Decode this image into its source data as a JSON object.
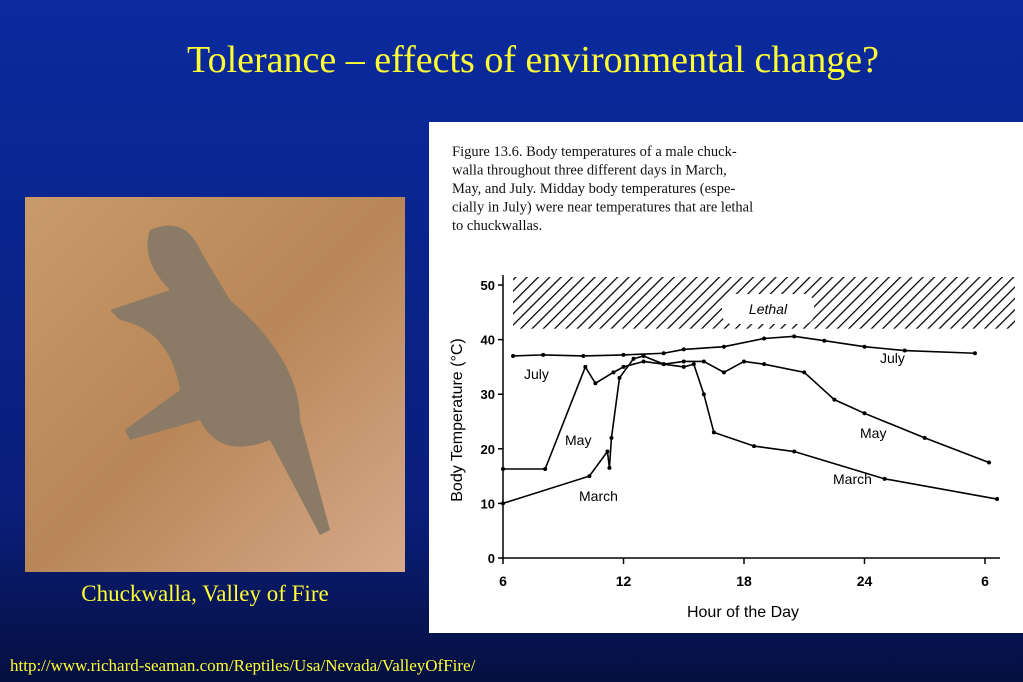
{
  "title": "Tolerance – effects of environmental change?",
  "photo_caption": "Chuckwalla, Valley of Fire",
  "url": "http://www.richard-seaman.com/Reptiles/Usa/Nevada/ValleyOfFire/",
  "figure_caption": [
    "Figure 13.6. Body temperatures of a male chuck-",
    "walla throughout three different days in March,",
    "May, and July. Midday body temperatures (espe-",
    "cially in July) were near temperatures that are lethal",
    "to chuckwallas."
  ],
  "chart_data": {
    "type": "line",
    "xlabel": "Hour of the Day",
    "ylabel": "Body Temperature (°C)",
    "annotation": "Lethal",
    "xlim": [
      6,
      30.8
    ],
    "xticks": [
      6,
      12,
      18,
      24,
      {
        "value": 30,
        "label": "6"
      }
    ],
    "ylim": [
      0,
      50
    ],
    "yticks": [
      0,
      10,
      20,
      30,
      40,
      50
    ],
    "lethal_range": [
      42,
      50
    ],
    "series": [
      {
        "name": "July",
        "color": "#000000",
        "x": [
          6.5,
          8,
          10,
          12,
          14,
          15,
          17,
          19,
          20.5,
          22,
          24,
          26,
          29.5
        ],
        "values": [
          37,
          37.2,
          37,
          37.2,
          37.5,
          38.2,
          38.7,
          40.2,
          40.6,
          39.8,
          38.7,
          38,
          37.5
        ]
      },
      {
        "name": "May",
        "color": "#000000",
        "x": [
          6,
          8.1,
          10.1,
          10.6,
          11.5,
          12,
          13,
          14,
          15,
          16,
          17,
          18,
          19,
          21,
          22.5,
          24,
          27,
          30.2
        ],
        "values": [
          16.3,
          16.3,
          35,
          32,
          34,
          35,
          36,
          35.5,
          36,
          36,
          34,
          36,
          35.5,
          34,
          29,
          26.5,
          22,
          17.5
        ]
      },
      {
        "name": "March",
        "color": "#000000",
        "x": [
          6,
          10.3,
          11.2,
          11.3,
          11.4,
          11.8,
          12.5,
          13,
          14,
          15,
          15.5,
          16,
          16.5,
          18.5,
          20.5,
          25,
          30.6
        ],
        "values": [
          10,
          15,
          19.5,
          16.5,
          22,
          33,
          36.5,
          37,
          35.5,
          35,
          35.5,
          30,
          23,
          20.5,
          19.5,
          14.5,
          10.8
        ]
      }
    ]
  }
}
